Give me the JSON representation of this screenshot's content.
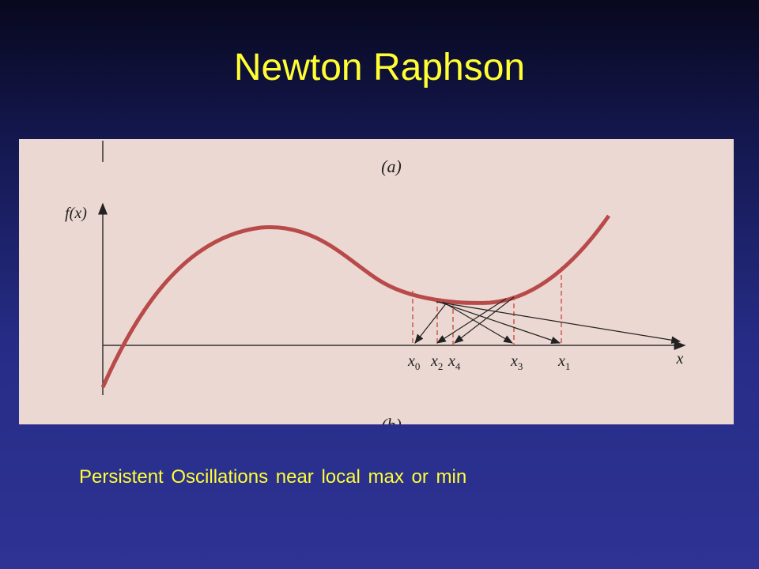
{
  "title": "Newton Raphson",
  "figure": {
    "panel_top_label": "(a)",
    "panel_bottom_label": "(b)",
    "y_axis_label": "f(x)",
    "x_axis_label": "x",
    "iterate_labels": [
      {
        "symbol": "x",
        "subscript": "0"
      },
      {
        "symbol": "x",
        "subscript": "2"
      },
      {
        "symbol": "x",
        "subscript": "4"
      },
      {
        "symbol": "x",
        "subscript": "3"
      },
      {
        "symbol": "x",
        "subscript": "1"
      }
    ]
  },
  "caption": "Persistent Oscillations near local max or min"
}
